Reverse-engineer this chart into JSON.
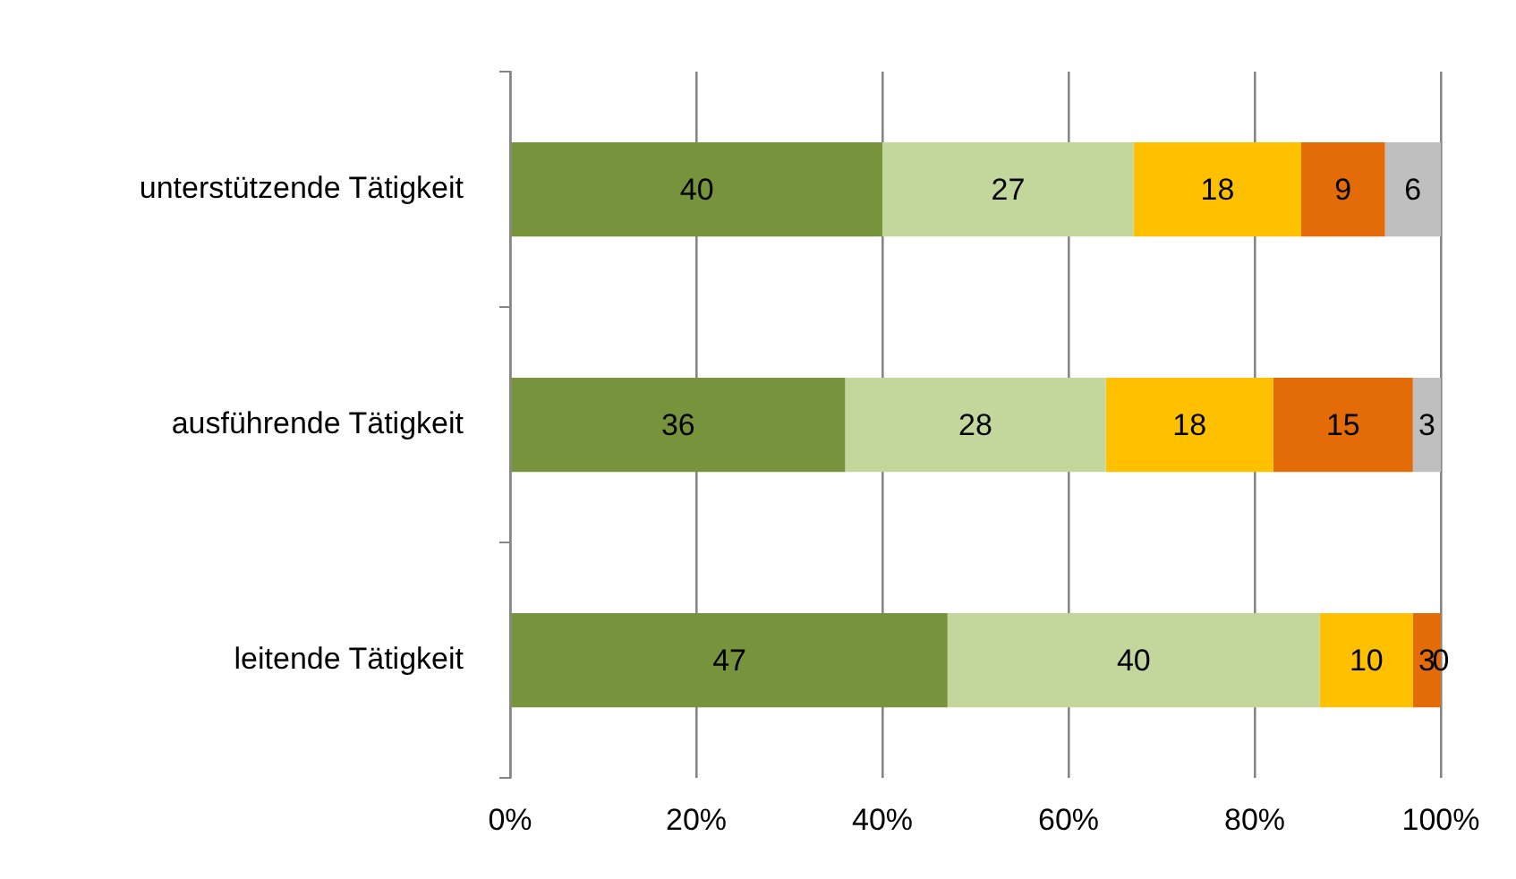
{
  "chart_data": {
    "type": "bar",
    "orientation": "horizontal",
    "stacked": true,
    "categories": [
      "unterstützende Tätigkeit",
      "ausführende Tätigkeit",
      "leitende Tätigkeit"
    ],
    "series": [
      {
        "color": "#77933c",
        "values": [
          40,
          36,
          47
        ]
      },
      {
        "color": "#c3d69b",
        "values": [
          27,
          28,
          40
        ]
      },
      {
        "color": "#ffc000",
        "values": [
          18,
          18,
          10
        ]
      },
      {
        "color": "#e36c09",
        "values": [
          9,
          15,
          3
        ]
      },
      {
        "color": "#bfbfbf",
        "values": [
          6,
          3,
          0
        ]
      }
    ],
    "xlim": [
      0,
      100
    ],
    "xticks": [
      {
        "value": 0,
        "label": "0%"
      },
      {
        "value": 20,
        "label": "20%"
      },
      {
        "value": 40,
        "label": "40%"
      },
      {
        "value": 60,
        "label": "60%"
      },
      {
        "value": 80,
        "label": "80%"
      },
      {
        "value": 100,
        "label": "100%"
      }
    ],
    "grid": "x",
    "data_labels": true,
    "legend": false
  }
}
